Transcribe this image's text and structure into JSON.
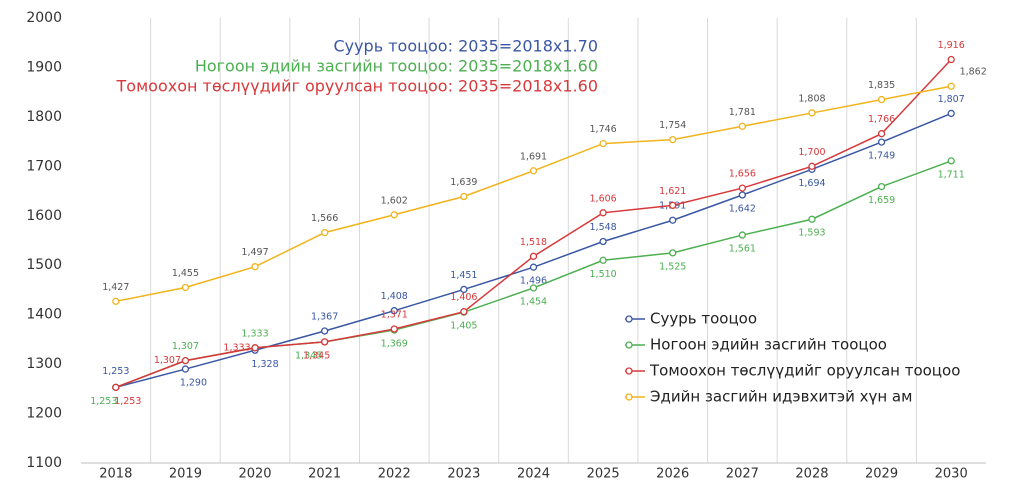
{
  "chart_data": {
    "type": "line",
    "categories": [
      "2018",
      "2019",
      "2020",
      "2021",
      "2022",
      "2023",
      "2024",
      "2025",
      "2026",
      "2027",
      "2028",
      "2029",
      "2030"
    ],
    "series": [
      {
        "name": "Суурь тооцоо",
        "color": "#3a57a4",
        "values": [
          1253,
          1290,
          1328,
          1367,
          1408,
          1451,
          1496,
          1548,
          1591,
          1642,
          1694,
          1749,
          1807
        ],
        "value_labels": [
          "1,253",
          "1,290",
          "1,328",
          "1,367",
          "1,408",
          "1,451",
          "1,496",
          "1,548",
          "1,591",
          "1,642",
          "1,694",
          "1,749",
          "1,807"
        ]
      },
      {
        "name": "Ногоон эдийн засгийн тооцоо",
        "color": "#4caf50",
        "values": [
          1253,
          1307,
          1333,
          1345,
          1369,
          1405,
          1454,
          1510,
          1525,
          1561,
          1593,
          1659,
          1711
        ],
        "value_labels": [
          "1,253",
          "1,307",
          "1,333",
          "1,345",
          "1,369",
          "1,405",
          "1,454",
          "1,510",
          "1,525",
          "1,561",
          "1,593",
          "1,659",
          "1,711"
        ]
      },
      {
        "name": "Томоохон төслүүдийг оруулсан тооцоо",
        "color": "#d9383a",
        "values": [
          1253,
          1307,
          1333,
          1345,
          1371,
          1406,
          1518,
          1606,
          1621,
          1656,
          1700,
          1766,
          1916
        ],
        "value_labels": [
          "1,253",
          "1,307",
          "1,333",
          "1,345",
          "1,371",
          "1,406",
          "1,518",
          "1,606",
          "1,621",
          "1,656",
          "1,700",
          "1,766",
          "1,916"
        ]
      },
      {
        "name": "Эдийн засгийн идэвхитэй хүн ам",
        "color": "#f2b31b",
        "values": [
          1427,
          1455,
          1497,
          1566,
          1602,
          1639,
          1691,
          1746,
          1754,
          1781,
          1808,
          1835,
          1862
        ],
        "value_labels": [
          "1,427",
          "1,455",
          "1,497",
          "1,566",
          "1,602",
          "1,639",
          "1,691",
          "1,746",
          "1,754",
          "1,781",
          "1,808",
          "1,835",
          "1,862"
        ]
      }
    ],
    "annotations": [
      {
        "text": "Суурь тооцоо: 2035=2018x1.70",
        "color": "#3a57a4"
      },
      {
        "text": "Ногоон эдийн засгийн тооцоо: 2035=2018x1.60",
        "color": "#4caf50"
      },
      {
        "text": "Томоохон төслүүдийг оруулсан тооцоо: 2035=2018x1.60",
        "color": "#d9383a"
      }
    ],
    "ylim": [
      1100,
      2000
    ],
    "yticks": [
      1100,
      1200,
      1300,
      1400,
      1500,
      1600,
      1700,
      1800,
      1900,
      2000
    ],
    "grid": "x",
    "legend": "right"
  }
}
